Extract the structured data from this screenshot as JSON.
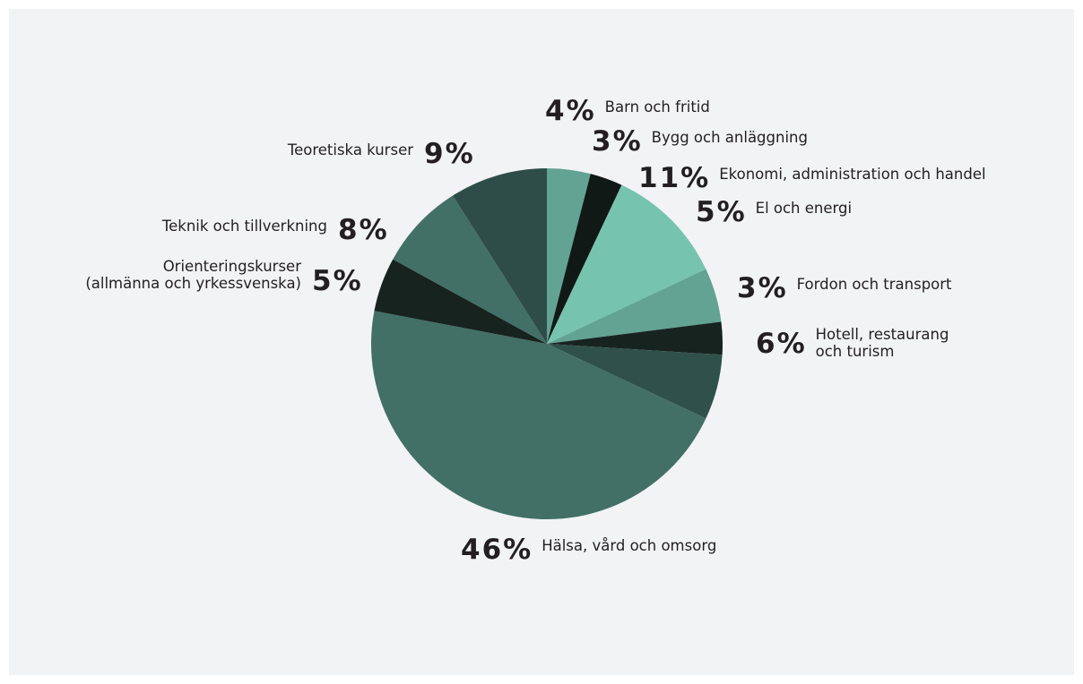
{
  "chart_data": {
    "type": "pie",
    "start_angle_deg": 0,
    "direction": "clockwise",
    "slices": [
      {
        "value": 4,
        "pct": "4%",
        "label_lines": [
          "Barn och fritid"
        ],
        "color": "#62a393"
      },
      {
        "value": 3,
        "pct": "3%",
        "label_lines": [
          "Bygg och anläggning"
        ],
        "color": "#111916"
      },
      {
        "value": 11,
        "pct": "11%",
        "label_lines": [
          "Ekonomi, administration och handel"
        ],
        "color": "#76c4ae"
      },
      {
        "value": 5,
        "pct": "5%",
        "label_lines": [
          "El och energi"
        ],
        "color": "#62a393"
      },
      {
        "value": 3,
        "pct": "3%",
        "label_lines": [
          "Fordon och transport"
        ],
        "color": "#17231f"
      },
      {
        "value": 6,
        "pct": "6%",
        "label_lines": [
          "Hotell, restaurang",
          "och turism"
        ],
        "color": "#2f514a"
      },
      {
        "value": 46,
        "pct": "46%",
        "label_lines": [
          "Hälsa, vård och omsorg"
        ],
        "color": "#426f66"
      },
      {
        "value": 5,
        "pct": "5%",
        "label_lines": [
          "Orienteringskurser",
          "(allmänna och yrkessvenska)"
        ],
        "color": "#17231f"
      },
      {
        "value": 8,
        "pct": "8%",
        "label_lines": [
          "Teknik och  tillverkning"
        ],
        "color": "#426f66"
      },
      {
        "value": 9,
        "pct": "9%",
        "label_lines": [
          "Teoretiska kurser"
        ],
        "color": "#2f4d48"
      }
    ]
  }
}
